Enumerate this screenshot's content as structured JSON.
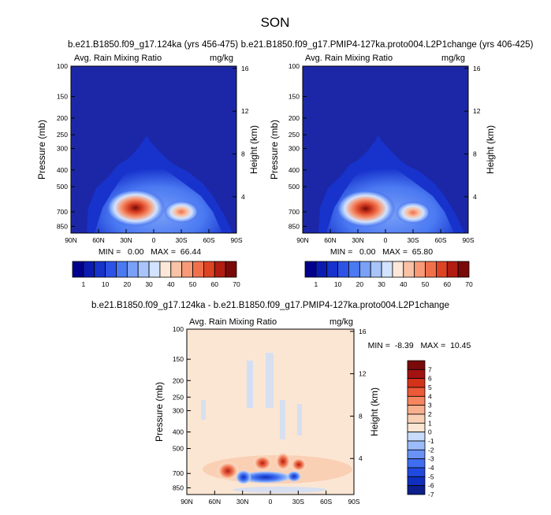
{
  "figure": {
    "title": "SON"
  },
  "colors": {
    "bg_base": "#1c27a8",
    "seq_palette": [
      "#00008c",
      "#0b1bb0",
      "#1733cc",
      "#2c53e6",
      "#4a79f2",
      "#7aa0f7",
      "#a8c4fb",
      "#d2e3ff",
      "#fce7d8",
      "#f9c1a5",
      "#f79a78",
      "#f0704c",
      "#dc4424",
      "#b21d12",
      "#7a0a0a"
    ],
    "diff_palette": [
      "#0c1f8c",
      "#0f2fbf",
      "#2049e0",
      "#3f6ef0",
      "#6a93f5",
      "#9bbcf9",
      "#c8dcfc",
      "#fbe6d3",
      "#fad0b5",
      "#f9b08e",
      "#f6865f",
      "#ec5a37",
      "#d5321a",
      "#a21210",
      "#7a0a0a"
    ]
  },
  "chart_data": [
    {
      "type": "heatmap",
      "panel": "left",
      "title": "b.e21.B1850.f09_g17.124ka (yrs 456-475)",
      "subtitle_left": "Avg. Rain Mixing Ratio",
      "subtitle_right": "mg/kg",
      "xlabel": "",
      "ylabel": "Pressure (mb)",
      "ylabel_right": "Height (km)",
      "x_ticks": [
        "90N",
        "60N",
        "30N",
        "0",
        "30S",
        "60S",
        "90S"
      ],
      "y_ticks": [
        "100",
        "150",
        "200",
        "250",
        "300",
        "400",
        "500",
        "700",
        "850"
      ],
      "y2_ticks": [
        "16",
        "12",
        "8",
        "4"
      ],
      "stats": "MIN =   0.00   MAX =  66.44",
      "colorbar_labels": [
        "1",
        "10",
        "20",
        "30",
        "40",
        "50",
        "60",
        "70"
      ]
    },
    {
      "type": "heatmap",
      "panel": "right",
      "title": "b.e21.B1850.f09_g17.PMIP4-127ka.proto004.L2P1change (yrs 406-425)",
      "subtitle_left": "Avg. Rain Mixing Ratio",
      "subtitle_right": "mg/kg",
      "xlabel": "",
      "ylabel": "Pressure (mb)",
      "ylabel_right": "Height (km)",
      "x_ticks": [
        "90N",
        "60N",
        "30N",
        "0",
        "30S",
        "60S",
        "90S"
      ],
      "y_ticks": [
        "100",
        "150",
        "200",
        "250",
        "300",
        "400",
        "500",
        "700",
        "850"
      ],
      "y2_ticks": [
        "16",
        "12",
        "8",
        "4"
      ],
      "stats": "MIN =   0.00   MAX =  65.80",
      "colorbar_labels": [
        "1",
        "10",
        "20",
        "30",
        "40",
        "50",
        "60",
        "70"
      ]
    },
    {
      "type": "heatmap",
      "panel": "difference",
      "title": "b.e21.B1850.f09_g17.124ka - b.e21.B1850.f09_g17.PMIP4-127ka.proto004.L2P1change",
      "subtitle_left": "Avg. Rain Mixing Ratio",
      "subtitle_right": "mg/kg",
      "xlabel": "",
      "ylabel": "Pressure (mb)",
      "ylabel_right": "Height (km)",
      "x_ticks": [
        "90N",
        "60N",
        "30N",
        "0",
        "30S",
        "60S",
        "90S"
      ],
      "y_ticks": [
        "100",
        "150",
        "200",
        "250",
        "300",
        "400",
        "500",
        "700",
        "850"
      ],
      "y2_ticks": [
        "16",
        "12",
        "8",
        "4"
      ],
      "stats": "MIN =  -8.39   MAX =  10.45",
      "colorbar_labels": [
        "7",
        "6",
        "5",
        "4",
        "3",
        "2",
        "1",
        "0",
        "-1",
        "-2",
        "-3",
        "-4",
        "-5",
        "-6",
        "-7"
      ]
    }
  ]
}
